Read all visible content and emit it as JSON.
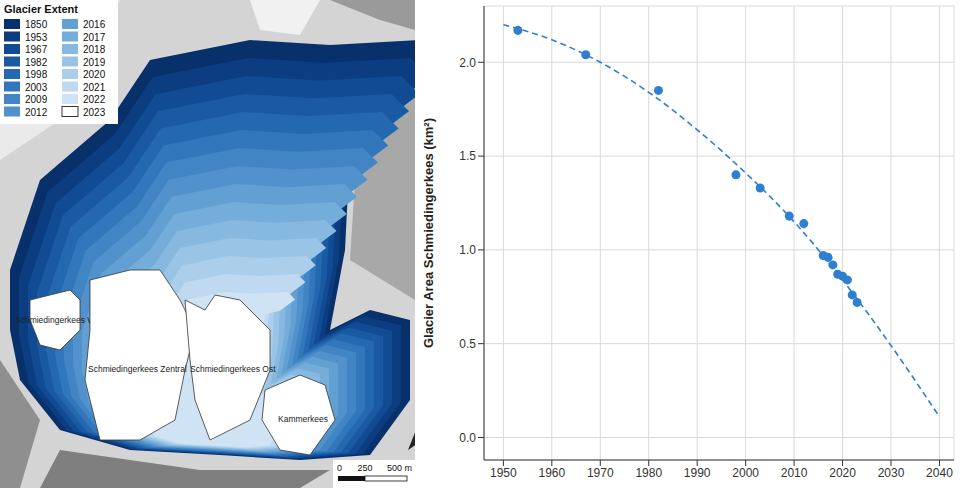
{
  "map": {
    "legend": {
      "title": "Glacier Extent",
      "items": [
        {
          "label": "1850",
          "color": "#08306b"
        },
        {
          "label": "1953",
          "color": "#0b3d80"
        },
        {
          "label": "1967",
          "color": "#114b93"
        },
        {
          "label": "1982",
          "color": "#1a5aa3"
        },
        {
          "label": "1998",
          "color": "#2468b0"
        },
        {
          "label": "2003",
          "color": "#3277bb"
        },
        {
          "label": "2009",
          "color": "#4185c4"
        },
        {
          "label": "2012",
          "color": "#5192cc"
        },
        {
          "label": "2016",
          "color": "#629fd3"
        },
        {
          "label": "2017",
          "color": "#74acda"
        },
        {
          "label": "2018",
          "color": "#86b8e0"
        },
        {
          "label": "2019",
          "color": "#99c4e6"
        },
        {
          "label": "2020",
          "color": "#abcfeb"
        },
        {
          "label": "2021",
          "color": "#bed9f0"
        },
        {
          "label": "2022",
          "color": "#d0e3f4"
        },
        {
          "label": "2023",
          "color": "#ffffff"
        }
      ]
    },
    "glaciers": [
      "Schmiedingerkees West",
      "Schmiedingerkees Zentral",
      "Schmiedingerkees Ost",
      "Kammerkees"
    ],
    "scale_bar": [
      "0",
      "250",
      "500 m"
    ]
  },
  "chart_data": {
    "type": "scatter",
    "y_label": "Glacier Area Schmiedingerkees (km²)",
    "xlim": [
      1946,
      2043
    ],
    "xticks": [
      1950,
      1960,
      1970,
      1980,
      1990,
      2000,
      2010,
      2020,
      2030,
      2040
    ],
    "ylim": [
      -0.12,
      2.3
    ],
    "yticks": [
      {
        "value": 0,
        "label": "0.0"
      },
      0.5,
      {
        "value": 1,
        "label": "1.0"
      },
      1.5,
      {
        "value": 2,
        "label": "2.0"
      }
    ],
    "grid": true,
    "series": [
      {
        "type": "scatter",
        "marker": "circle",
        "color": "#2e7fd1",
        "x": [
          1953,
          1967,
          1982,
          1998,
          2003,
          2009,
          2012,
          2016,
          2017,
          2018,
          2019,
          2020,
          2021,
          2022,
          2023
        ],
        "values": [
          2.17,
          2.04,
          1.85,
          1.4,
          1.33,
          1.18,
          1.14,
          0.97,
          0.96,
          0.92,
          0.87,
          0.86,
          0.84,
          0.76,
          0.72
        ]
      },
      {
        "type": "line",
        "line_style": "dashed",
        "color": "#2e7fd1",
        "x": [
          1950,
          1960,
          1970,
          1980,
          1990,
          2000,
          2010,
          2020,
          2030,
          2040
        ],
        "values": [
          2.2,
          2.12,
          2.0,
          1.84,
          1.64,
          1.41,
          1.15,
          0.84,
          0.49,
          0.11
        ]
      }
    ]
  }
}
